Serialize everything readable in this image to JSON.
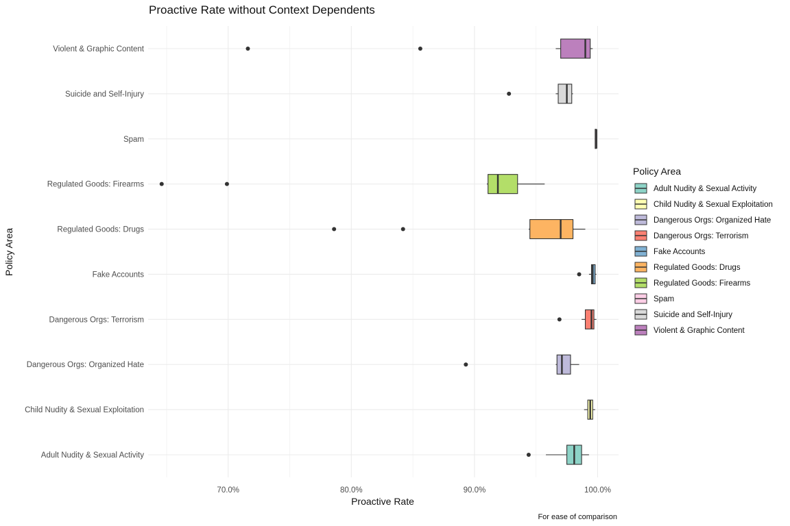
{
  "chart_data": {
    "type": "boxplot",
    "orientation": "horizontal",
    "title": "Proactive Rate without Context Dependents",
    "xlabel": "Proactive Rate",
    "ylabel": "Policy Area",
    "caption": "For ease of comparison",
    "xlim": [
      0.635,
      1.017
    ],
    "x_ticks": [
      0.7,
      0.8,
      0.9,
      1.0
    ],
    "x_tick_labels": [
      "70.0%",
      "80.0%",
      "90.0%",
      "100.0%"
    ],
    "grid": true,
    "legend": {
      "title": "Policy Area",
      "position": "right"
    },
    "categories": [
      "Adult Nudity & Sexual Activity",
      "Child Nudity & Sexual Exploitation",
      "Dangerous Orgs: Organized Hate",
      "Dangerous Orgs: Terrorism",
      "Fake Accounts",
      "Regulated Goods: Drugs",
      "Regulated Goods: Firearms",
      "Spam",
      "Suicide and Self-Injury",
      "Violent & Graphic Content"
    ],
    "series": [
      {
        "name": "Adult Nudity & Sexual Activity",
        "color": "#8DD3C7",
        "whisker_low": 0.958,
        "q1": 0.975,
        "median": 0.981,
        "q3": 0.987,
        "whisker_high": 0.993,
        "outliers": [
          0.944
        ]
      },
      {
        "name": "Child Nudity & Sexual Exploitation",
        "color": "#FFFFB3",
        "whisker_low": 0.989,
        "q1": 0.992,
        "median": 0.994,
        "q3": 0.996,
        "whisker_high": 0.998,
        "outliers": []
      },
      {
        "name": "Dangerous Orgs: Organized Hate",
        "color": "#BEBADA",
        "whisker_low": 0.966,
        "q1": 0.967,
        "median": 0.971,
        "q3": 0.978,
        "whisker_high": 0.985,
        "outliers": [
          0.893
        ]
      },
      {
        "name": "Dangerous Orgs: Terrorism",
        "color": "#FB8072",
        "whisker_low": 0.987,
        "q1": 0.99,
        "median": 0.995,
        "q3": 0.997,
        "whisker_high": 0.999,
        "outliers": [
          0.969
        ]
      },
      {
        "name": "Fake Accounts",
        "color": "#80B1D3",
        "whisker_low": 0.993,
        "q1": 0.995,
        "median": 0.996,
        "q3": 0.998,
        "whisker_high": 0.999,
        "outliers": [
          0.985
        ]
      },
      {
        "name": "Regulated Goods: Drugs",
        "color": "#FDB462",
        "whisker_low": 0.944,
        "q1": 0.945,
        "median": 0.97,
        "q3": 0.98,
        "whisker_high": 0.99,
        "outliers": [
          0.786,
          0.842
        ]
      },
      {
        "name": "Regulated Goods: Firearms",
        "color": "#B3DE69",
        "whisker_low": 0.91,
        "q1": 0.911,
        "median": 0.919,
        "q3": 0.935,
        "whisker_high": 0.957,
        "outliers": [
          0.646,
          0.699
        ]
      },
      {
        "name": "Spam",
        "color": "#FCCDE5",
        "whisker_low": 0.998,
        "q1": 0.998,
        "median": 0.999,
        "q3": 0.999,
        "whisker_high": 0.999,
        "outliers": []
      },
      {
        "name": "Suicide and Self-Injury",
        "color": "#D9D9D9",
        "whisker_low": 0.966,
        "q1": 0.968,
        "median": 0.975,
        "q3": 0.979,
        "whisker_high": 0.98,
        "outliers": [
          0.928
        ]
      },
      {
        "name": "Violent & Graphic Content",
        "color": "#BC80BD",
        "whisker_low": 0.966,
        "q1": 0.97,
        "median": 0.99,
        "q3": 0.994,
        "whisker_high": 0.996,
        "outliers": [
          0.716,
          0.856
        ]
      }
    ]
  }
}
